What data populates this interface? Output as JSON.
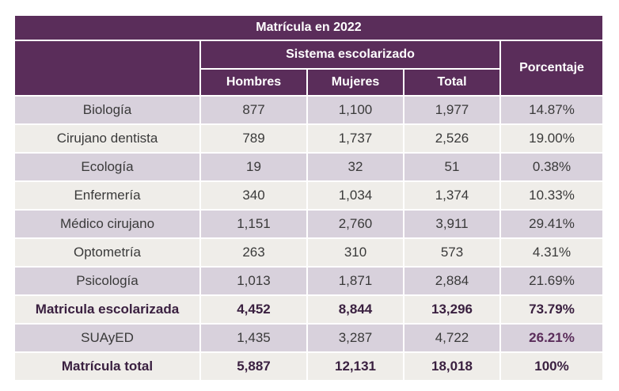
{
  "title": "Matrícula en 2022",
  "group_header": "Sistema escolarizado",
  "percent_header": "Porcentaje",
  "columns": [
    "Hombres",
    "Mujeres",
    "Total"
  ],
  "rows": [
    {
      "label": "Biología",
      "hombres": "877",
      "mujeres": "1,100",
      "total": "1,977",
      "pct": "14.87%"
    },
    {
      "label": "Cirujano dentista",
      "hombres": "789",
      "mujeres": "1,737",
      "total": "2,526",
      "pct": "19.00%"
    },
    {
      "label": "Ecología",
      "hombres": "19",
      "mujeres": "32",
      "total": "51",
      "pct": "0.38%"
    },
    {
      "label": "Enfermería",
      "hombres": "340",
      "mujeres": "1,034",
      "total": "1,374",
      "pct": "10.33%"
    },
    {
      "label": "Médico cirujano",
      "hombres": "1,151",
      "mujeres": "2,760",
      "total": "3,911",
      "pct": "29.41%"
    },
    {
      "label": "Optometría",
      "hombres": "263",
      "mujeres": "310",
      "total": "573",
      "pct": "4.31%"
    },
    {
      "label": "Psicología",
      "hombres": "1,013",
      "mujeres": "1,871",
      "total": "2,884",
      "pct": "21.69%"
    },
    {
      "label": "Matricula escolarizada",
      "hombres": "4,452",
      "mujeres": "8,844",
      "total": "13,296",
      "pct": "73.79%"
    },
    {
      "label": "SUAyED",
      "hombres": "1,435",
      "mujeres": "3,287",
      "total": "4,722",
      "pct": "26.21%"
    },
    {
      "label": "Matrícula total",
      "hombres": "5,887",
      "mujeres": "12,131",
      "total": "18,018",
      "pct": "100%"
    }
  ],
  "colors": {
    "header_bg": "#5a2d5a",
    "row_shade": "#d8d1dc",
    "row_plain": "#efede9"
  }
}
